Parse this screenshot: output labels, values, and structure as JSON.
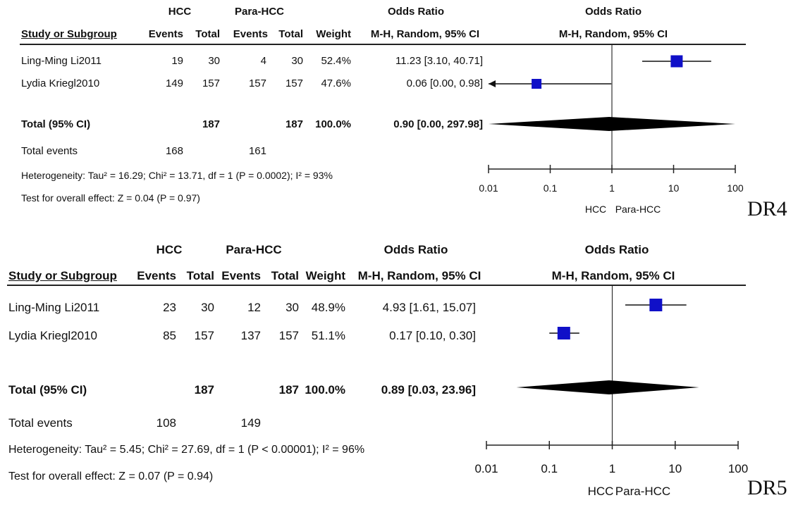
{
  "chart_data": [
    {
      "type": "forest",
      "label": "DR4",
      "headers": {
        "group1": "HCC",
        "group2": "Para-HCC",
        "or_title": "Odds Ratio",
        "study": "Study or Subgroup",
        "events": "Events",
        "total": "Total",
        "weight": "Weight",
        "method": "M-H, Random, 95% CI"
      },
      "studies": [
        {
          "name": "Ling-Ming Li2011",
          "e1": "19",
          "t1": "30",
          "e2": "4",
          "t2": "30",
          "weight": "52.4%",
          "ci_text": "11.23 [3.10, 40.71]",
          "or": 11.23,
          "lo": 3.1,
          "hi": 40.71
        },
        {
          "name": "Lydia Kriegl2010",
          "e1": "149",
          "t1": "157",
          "e2": "157",
          "t2": "157",
          "weight": "47.6%",
          "ci_text": "0.06 [0.00, 0.98]",
          "or": 0.06,
          "lo": 0.0,
          "hi": 0.98
        }
      ],
      "total": {
        "label": "Total (95% CI)",
        "t1": "187",
        "t2": "187",
        "weight": "100.0%",
        "ci_text": "0.90 [0.00, 297.98]",
        "or": 0.9,
        "lo": 0.0,
        "hi": 297.98
      },
      "events": {
        "label": "Total events",
        "e1": "168",
        "e2": "161"
      },
      "heterogeneity": "Heterogeneity: Tau² = 16.29; Chi² = 13.71, df = 1 (P = 0.0002); I² = 93%",
      "overall": "Test for overall effect: Z = 0.04 (P = 0.97)",
      "axis": {
        "scale": "log",
        "ticks": [
          "0.01",
          "0.1",
          "1",
          "10",
          "100"
        ],
        "range": [
          0.01,
          100
        ]
      },
      "favours_left": "HCC",
      "favours_right": "Para-HCC",
      "marker_color": "#1010c8"
    },
    {
      "type": "forest",
      "label": "DR5",
      "headers": {
        "group1": "HCC",
        "group2": "Para-HCC",
        "or_title": "Odds Ratio",
        "study": "Study or Subgroup",
        "events": "Events",
        "total": "Total",
        "weight": "Weight",
        "method": "M-H, Random, 95% CI"
      },
      "studies": [
        {
          "name": "Ling-Ming Li2011",
          "e1": "23",
          "t1": "30",
          "e2": "12",
          "t2": "30",
          "weight": "48.9%",
          "ci_text": "4.93 [1.61, 15.07]",
          "or": 4.93,
          "lo": 1.61,
          "hi": 15.07
        },
        {
          "name": "Lydia Kriegl2010",
          "e1": "85",
          "t1": "157",
          "e2": "137",
          "t2": "157",
          "weight": "51.1%",
          "ci_text": "0.17 [0.10, 0.30]",
          "or": 0.17,
          "lo": 0.1,
          "hi": 0.3
        }
      ],
      "total": {
        "label": "Total (95% CI)",
        "t1": "187",
        "t2": "187",
        "weight": "100.0%",
        "ci_text": "0.89 [0.03, 23.96]",
        "or": 0.89,
        "lo": 0.03,
        "hi": 23.96
      },
      "events": {
        "label": "Total events",
        "e1": "108",
        "e2": "149"
      },
      "heterogeneity": "Heterogeneity: Tau² = 5.45; Chi² = 27.69, df = 1 (P < 0.00001); I² = 96%",
      "overall": "Test for overall effect: Z = 0.07 (P = 0.94)",
      "axis": {
        "scale": "log",
        "ticks": [
          "0.01",
          "0.1",
          "1",
          "10",
          "100"
        ],
        "range": [
          0.01,
          100
        ]
      },
      "favours_left": "HCC",
      "favours_right": "Para-HCC",
      "marker_color": "#1010c8"
    }
  ]
}
